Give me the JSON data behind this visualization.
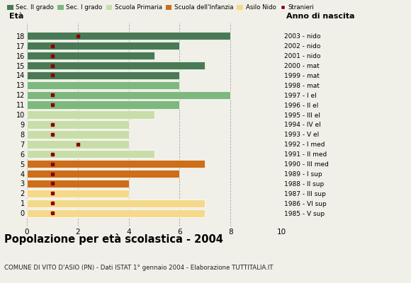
{
  "ages": [
    18,
    17,
    16,
    15,
    14,
    13,
    12,
    11,
    10,
    9,
    8,
    7,
    6,
    5,
    4,
    3,
    2,
    1,
    0
  ],
  "bar_values": [
    8,
    6,
    5,
    7,
    6,
    6,
    8,
    6,
    5,
    4,
    4,
    4,
    5,
    7,
    6,
    4,
    4,
    7,
    7
  ],
  "stranieri": [
    2,
    1,
    1,
    1,
    1,
    0,
    1,
    1,
    0,
    1,
    1,
    2,
    1,
    1,
    1,
    1,
    1,
    1,
    1
  ],
  "bar_colors": {
    "18": "#4a7a55",
    "17": "#4a7a55",
    "16": "#4a7a55",
    "15": "#4a7a55",
    "14": "#4a7a55",
    "13": "#7eb87e",
    "12": "#7eb87e",
    "11": "#7eb87e",
    "10": "#c8dda8",
    "9": "#c8dda8",
    "8": "#c8dda8",
    "7": "#c8dda8",
    "6": "#c8dda8",
    "5": "#cc6e1a",
    "4": "#cc6e1a",
    "3": "#cc6e1a",
    "2": "#f5d98b",
    "1": "#f5d98b",
    "0": "#f5d98b"
  },
  "right_labels": {
    "18": "1985 - V sup",
    "17": "1986 - VI sup",
    "16": "1987 - III sup",
    "15": "1988 - II sup",
    "14": "1989 - I sup",
    "13": "1990 - III med",
    "12": "1991 - II med",
    "11": "1992 - I med",
    "10": "1993 - V el",
    "9": "1994 - IV el",
    "8": "1995 - III el",
    "7": "1996 - II el",
    "6": "1997 - I el",
    "5": "1998 - mat",
    "4": "1999 - mat",
    "3": "2000 - mat",
    "2": "2001 - nido",
    "1": "2002 - nido",
    "0": "2003 - nido"
  },
  "legend_labels": [
    "Sec. II grado",
    "Sec. I grado",
    "Scuola Primaria",
    "Scuola dell'Infanzia",
    "Asilo Nido",
    "Stranieri"
  ],
  "legend_colors": [
    "#4a7a55",
    "#7eb87e",
    "#c8dda8",
    "#cc6e1a",
    "#f5d98b",
    "#8b0000"
  ],
  "title": "Popolazione per età scolastica - 2004",
  "subtitle": "COMUNE DI VITO D'ASIO (PN) - Dati ISTAT 1° gennaio 2004 - Elaborazione TUTTITALIA.IT",
  "xlabel_age": "Età",
  "xlabel_anno": "Anno di nascita",
  "xlim": [
    0,
    10
  ],
  "xticks": [
    0,
    2,
    4,
    6,
    8,
    10
  ],
  "background_color": "#f0f0e8",
  "grid_color": "#aaaaaa"
}
